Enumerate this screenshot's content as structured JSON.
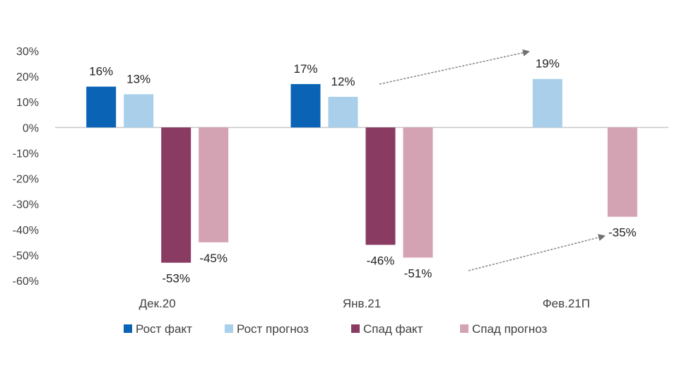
{
  "chart_data": {
    "type": "bar",
    "title": "",
    "xlabel": "",
    "ylabel": "",
    "categories": [
      "Дек.20",
      "Янв.21",
      "Фев.21П"
    ],
    "series": [
      {
        "name": "Рост факт",
        "color": "#0a63b5",
        "values": [
          16,
          17,
          null
        ],
        "labels": [
          "16%",
          "17%",
          ""
        ]
      },
      {
        "name": "Рост прогноз",
        "color": "#a9cfea",
        "values": [
          13,
          12,
          19
        ],
        "labels": [
          "13%",
          "12%",
          "19%"
        ]
      },
      {
        "name": "Спад факт",
        "color": "#8a3b62",
        "values": [
          -53,
          -46,
          null
        ],
        "labels": [
          "-53%",
          "-46%",
          ""
        ]
      },
      {
        "name": "Спад прогноз",
        "color": "#d3a3b3",
        "values": [
          -45,
          -51,
          -35
        ],
        "labels": [
          "-45%",
          "-51%",
          "-35%"
        ]
      }
    ],
    "ylim": [
      -60,
      30
    ],
    "yticks": [
      30,
      20,
      10,
      0,
      -10,
      -20,
      -30,
      -40,
      -50,
      -60
    ],
    "ytick_labels": [
      "30%",
      "20%",
      "10%",
      "0%",
      "-10%",
      "-20%",
      "-30%",
      "-40%",
      "-50%",
      "-60%"
    ],
    "legend_position": "bottom",
    "grid": false,
    "annotations": [
      "trend arrow from Янв.21 growth toward Фев.21П growth",
      "trend arrow from Янв.21 decline toward Фев.21П decline"
    ]
  }
}
